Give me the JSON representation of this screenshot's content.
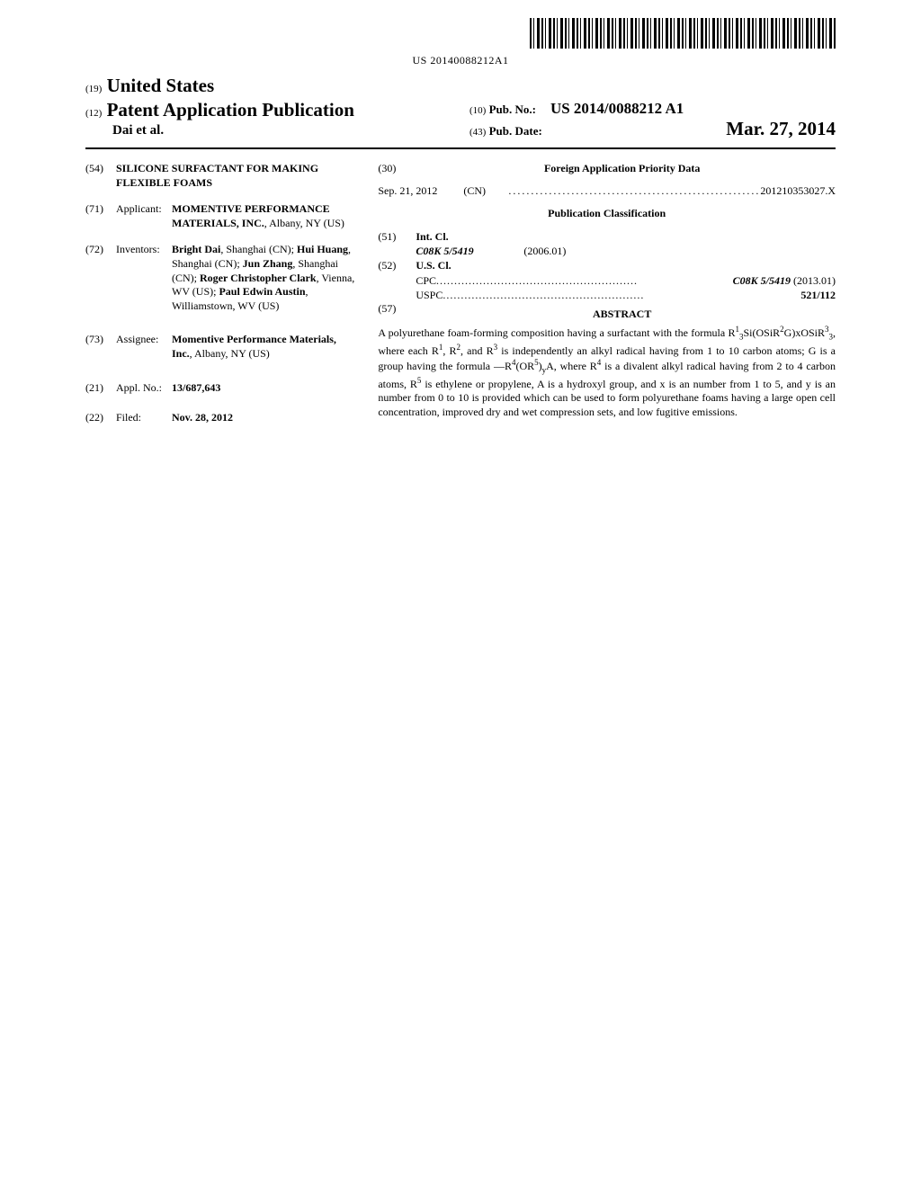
{
  "barcode": {
    "number_text": "US 20140088212A1"
  },
  "header": {
    "inid_country": "(19)",
    "country": "United States",
    "inid_pubtype": "(12)",
    "pub_type": "Patent Application Publication",
    "authors": "Dai et al.",
    "inid_pubno": "(10)",
    "pubno_label": "Pub. No.:",
    "pubno_value": "US 2014/0088212 A1",
    "inid_pubdate": "(43)",
    "pubdate_label": "Pub. Date:",
    "pubdate_value": "Mar. 27, 2014"
  },
  "left": {
    "title": {
      "inid": "(54)",
      "text": "SILICONE SURFACTANT FOR MAKING FLEXIBLE FOAMS"
    },
    "applicant": {
      "inid": "(71)",
      "label": "Applicant:",
      "name": "MOMENTIVE PERFORMANCE MATERIALS, INC.",
      "loc": ", Albany, NY (US)"
    },
    "inventors": {
      "inid": "(72)",
      "label": "Inventors:",
      "text_html": "<span class=\"bold\">Bright Dai</span>, Shanghai (CN); <span class=\"bold\">Hui Huang</span>, Shanghai (CN); <span class=\"bold\">Jun Zhang</span>, Shanghai (CN); <span class=\"bold\">Roger Christopher Clark</span>, Vienna, WV (US); <span class=\"bold\">Paul Edwin Austin</span>, Williamstown, WV (US)"
    },
    "assignee": {
      "inid": "(73)",
      "label": "Assignee:",
      "name": "Momentive Performance Materials, Inc.",
      "loc": ", Albany, NY (US)"
    },
    "applno": {
      "inid": "(21)",
      "label": "Appl. No.:",
      "value": "13/687,643"
    },
    "filed": {
      "inid": "(22)",
      "label": "Filed:",
      "value": "Nov. 28, 2012"
    }
  },
  "right": {
    "foreign_priority": {
      "inid": "(30)",
      "header": "Foreign Application Priority Data",
      "rows": [
        {
          "date": "Sep. 21, 2012",
          "country": "(CN)",
          "number": "201210353027.X"
        }
      ]
    },
    "classification_header": "Publication Classification",
    "intcl": {
      "inid": "(51)",
      "label": "Int. Cl.",
      "rows": [
        {
          "code": "C08K 5/5419",
          "version": "(2006.01)"
        }
      ]
    },
    "uscl": {
      "inid": "(52)",
      "label": "U.S. Cl.",
      "cpc_label": "CPC",
      "cpc_value": "C08K 5/5419",
      "cpc_version": "(2013.01)",
      "uspc_label": "USPC",
      "uspc_value": "521/112"
    },
    "abstract": {
      "inid": "(57)",
      "heading": "ABSTRACT",
      "text_html": "A polyurethane foam-forming composition having a surfactant with the formula R<span class=\"sup\">1</span><span class=\"sub\">3</span>Si(OSiR<span class=\"sup\">2</span>G)xOSiR<span class=\"sup\">3</span><span class=\"sub\">3</span>, where each R<span class=\"sup\">1</span>, R<span class=\"sup\">2</span>, and R<span class=\"sup\">3</span> is independently an alkyl radical having from 1 to 10 carbon atoms; G is a group having the formula —R<span class=\"sup\">4</span>(OR<span class=\"sup\">5</span>)<span class=\"sub\">y</span>A, where R<span class=\"sup\">4</span> is a divalent alkyl radical having from 2 to 4 carbon atoms, R<span class=\"sup\">5</span> is ethylene or propylene, A is a hydroxyl group, and x is an number from 1 to 5, and y is an number from 0 to 10 is provided which can be used to form polyurethane foams having a large open cell concentration, improved dry and wet compression sets, and low fugitive emissions."
    }
  },
  "dots": "........................................................"
}
